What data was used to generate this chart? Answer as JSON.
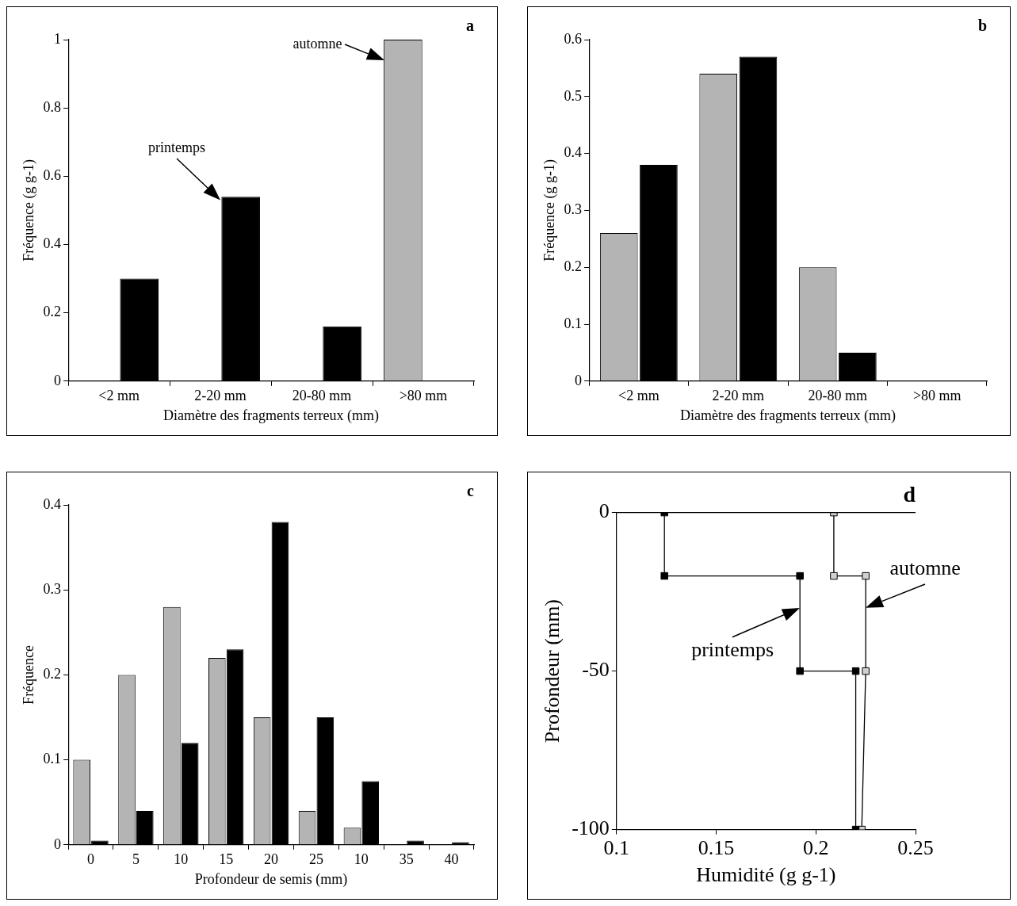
{
  "chart_data": [
    {
      "type": "bar",
      "title": "a",
      "xlabel": "Diamètre des fragments terreux (mm)",
      "ylabel": "Fréquence (g g-1)",
      "categories": [
        "<2 mm",
        "2-20 mm",
        "20-80 mm",
        ">80 mm"
      ],
      "series": [
        {
          "color": "#b4b4b4",
          "values": [
            0,
            0,
            0,
            1.0
          ]
        },
        {
          "color": "#000000",
          "values": [
            0.3,
            0.54,
            0.16,
            0
          ]
        }
      ],
      "ylim": [
        0,
        1
      ],
      "yticks": [
        0,
        0.2,
        0.4,
        0.6,
        0.8,
        1
      ],
      "grid": false,
      "legend": false,
      "annotations": [
        "printemps",
        "automne"
      ]
    },
    {
      "type": "bar",
      "title": "b",
      "xlabel": "Diamètre des fragments terreux (mm)",
      "ylabel": "Fréquence (g g-1)",
      "categories": [
        "<2 mm",
        "2-20 mm",
        "20-80 mm",
        ">80 mm"
      ],
      "series": [
        {
          "color": "#b4b4b4",
          "values": [
            0.26,
            0.54,
            0.2,
            0
          ]
        },
        {
          "color": "#000000",
          "values": [
            0.38,
            0.57,
            0.05,
            0
          ]
        }
      ],
      "ylim": [
        0,
        0.6
      ],
      "yticks": [
        0,
        0.1,
        0.2,
        0.3,
        0.4,
        0.5,
        0.6
      ],
      "grid": false,
      "legend": false
    },
    {
      "type": "bar",
      "title": "c",
      "xlabel": "Profondeur de semis (mm)",
      "ylabel": "Fréquence",
      "categories": [
        "0",
        "5",
        "10",
        "15",
        "20",
        "25",
        "10",
        "35",
        "40"
      ],
      "series": [
        {
          "color": "#b4b4b4",
          "values": [
            0.1,
            0.2,
            0.28,
            0.22,
            0.15,
            0.04,
            0.02,
            0,
            0
          ]
        },
        {
          "color": "#000000",
          "values": [
            0.005,
            0.04,
            0.12,
            0.23,
            0.38,
            0.15,
            0.075,
            0.005,
            0.003
          ]
        }
      ],
      "ylim": [
        0,
        0.4
      ],
      "yticks": [
        0,
        0.1,
        0.2,
        0.3,
        0.4
      ],
      "grid": false,
      "legend": false
    },
    {
      "type": "line",
      "title": "d",
      "xlabel": "Humidité (g g-1)",
      "ylabel": "Profondeur (mm)",
      "series": [
        {
          "color": "#000000",
          "x": [
            0.124,
            0.124,
            0.192,
            0.192,
            0.22,
            0.22
          ],
          "values": [
            0,
            -20,
            -20,
            -50,
            -50,
            -100
          ]
        },
        {
          "color": "#d0d0d0",
          "x": [
            0.209,
            0.209,
            0.225,
            0.225,
            0.223
          ],
          "values": [
            0,
            -20,
            -20,
            -50,
            -100
          ]
        }
      ],
      "xlim": [
        0.1,
        0.25
      ],
      "xticks": [
        0.1,
        0.15,
        0.2,
        0.25
      ],
      "ylim": [
        -100,
        0
      ],
      "yticks": [
        -100,
        -50,
        0
      ],
      "grid": false,
      "legend": false,
      "marker": "square",
      "line_style": "solid",
      "ref_lines": [
        {
          "axis": "y",
          "value": 0
        }
      ],
      "annotations": [
        {
          "text": "printemps",
          "x": 0.192,
          "y": -30
        },
        {
          "text": "automne",
          "x": 0.225,
          "y": -30
        }
      ]
    }
  ]
}
